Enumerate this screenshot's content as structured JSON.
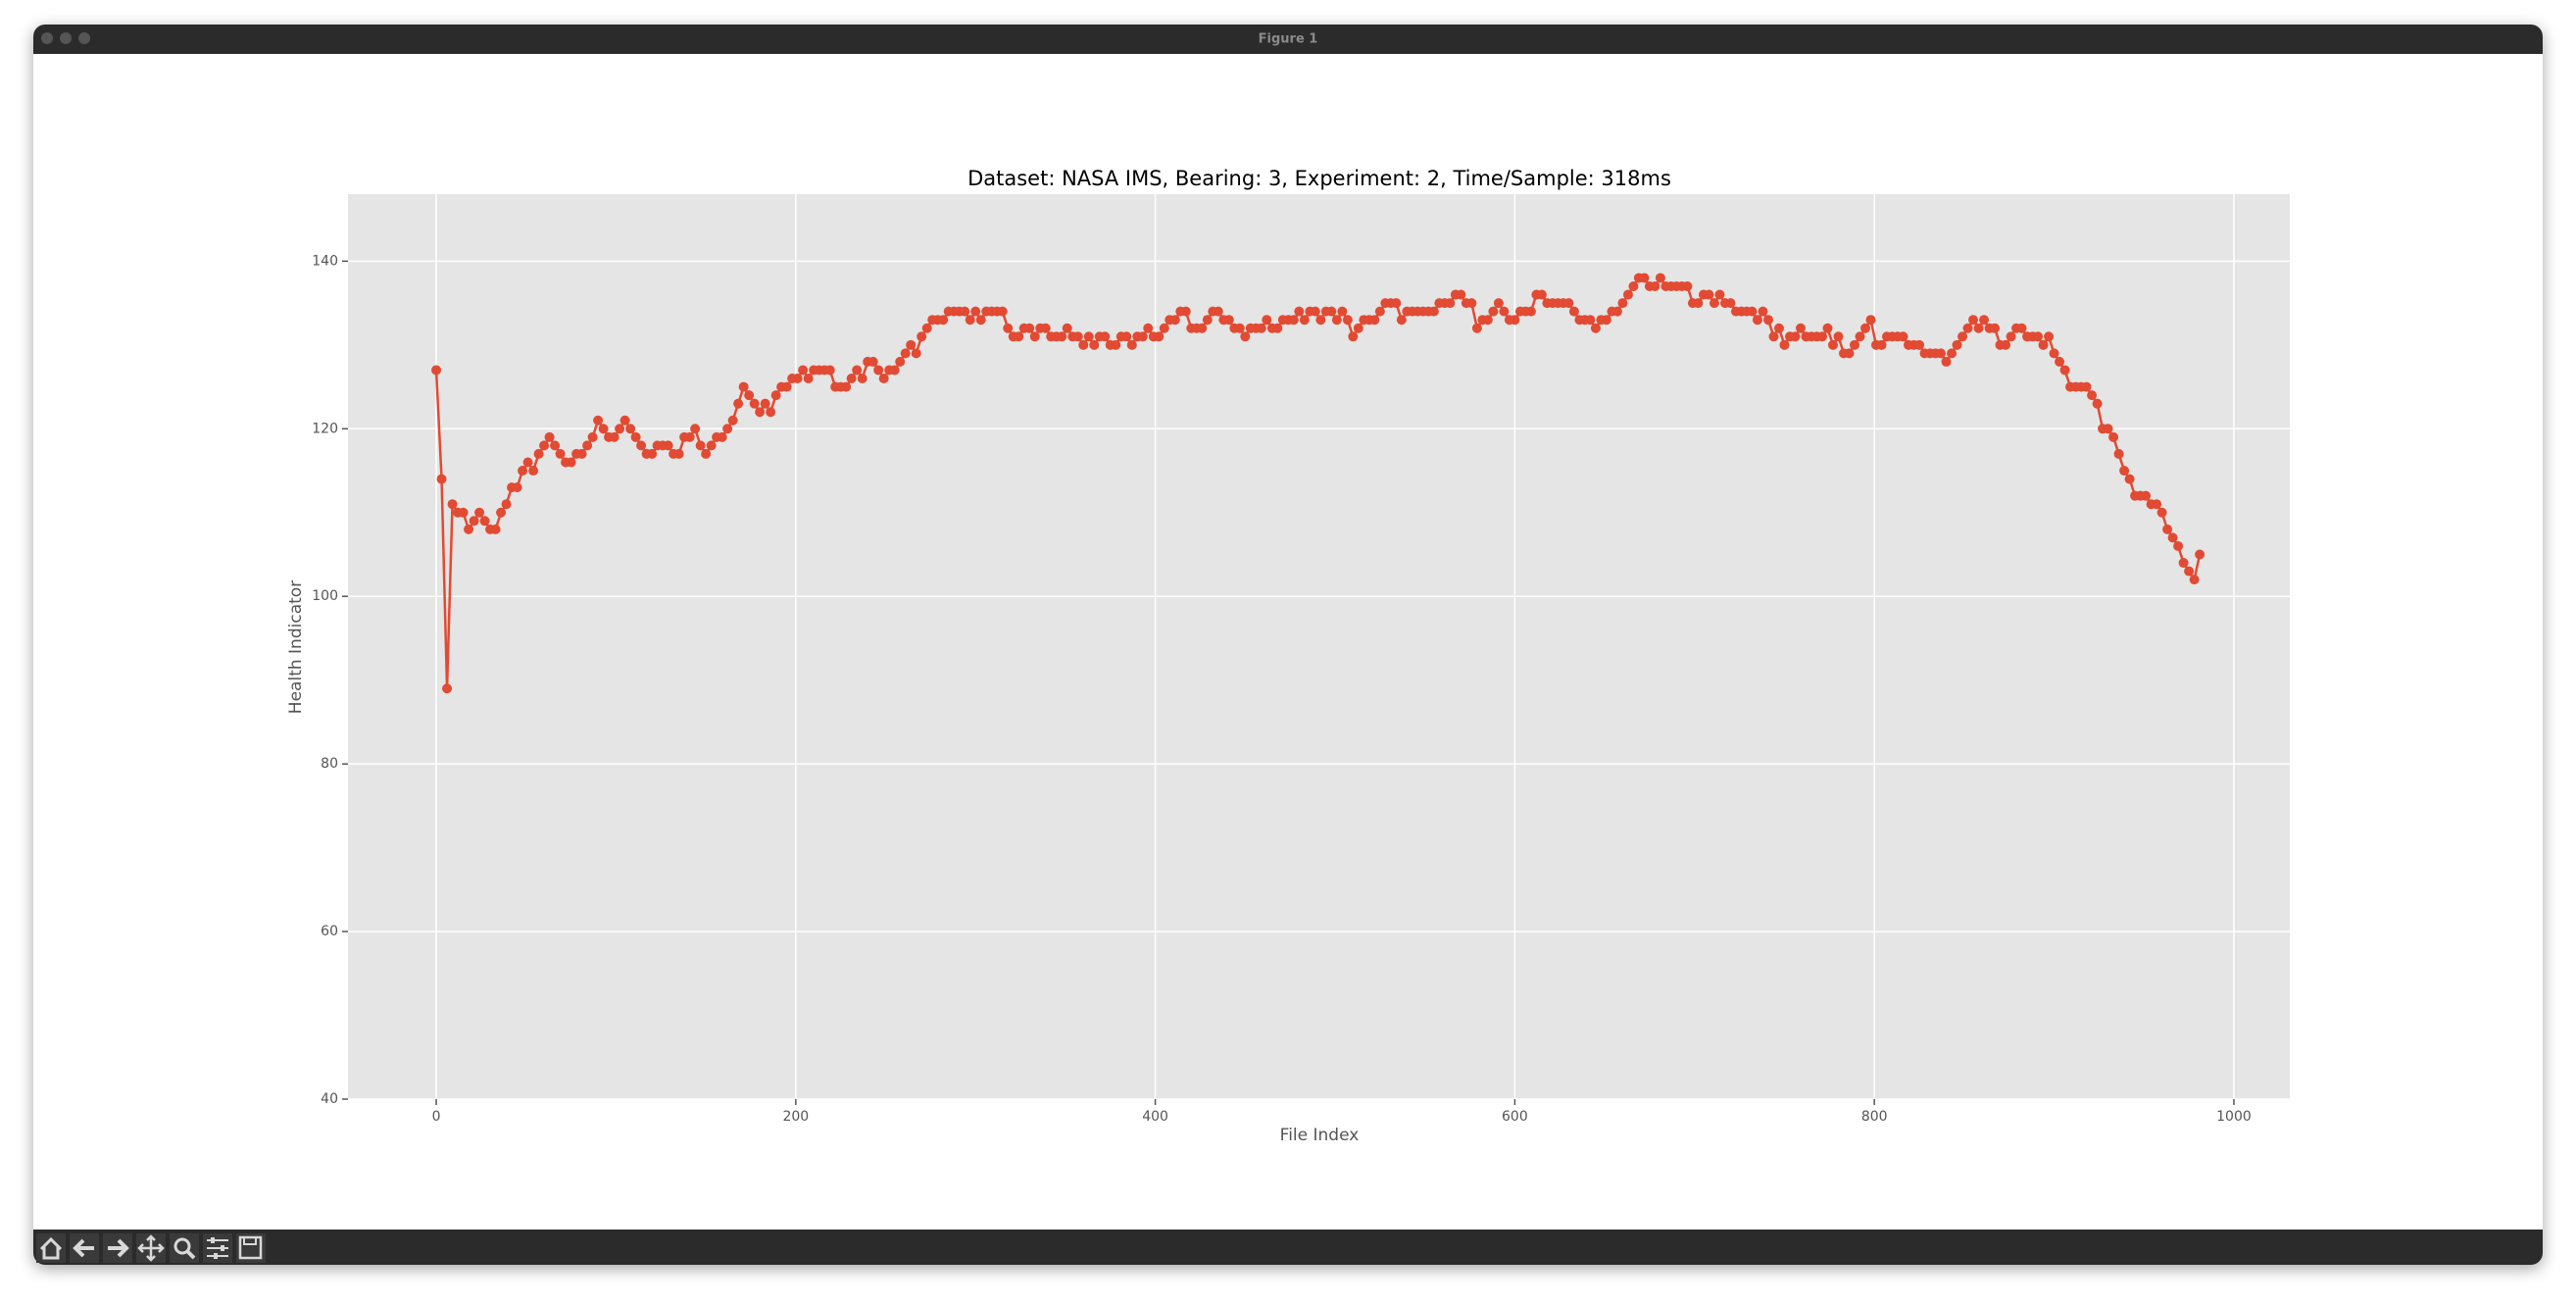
{
  "window": {
    "title": "Figure 1"
  },
  "chart_data": {
    "type": "line",
    "title": "Dataset: NASA IMS, Bearing: 3, Experiment: 2, Time/Sample: 318ms",
    "x_label": "File Index",
    "y_label": "Health Indicator",
    "color": "#E24A33",
    "marker": true,
    "grid": true,
    "xlim": [
      -49.1,
      1031.1
    ],
    "ylim": [
      40,
      148
    ],
    "xticks": [
      0,
      200,
      400,
      600,
      800,
      1000
    ],
    "yticks": [
      40,
      60,
      80,
      100,
      120,
      140
    ],
    "x": [
      0,
      3,
      6,
      9,
      12,
      15,
      18,
      21,
      24,
      27,
      30,
      33,
      36,
      39,
      42,
      45,
      48,
      51,
      54,
      57,
      60,
      63,
      66,
      69,
      72,
      75,
      78,
      81,
      84,
      87,
      90,
      93,
      96,
      99,
      102,
      105,
      108,
      111,
      114,
      117,
      120,
      123,
      126,
      129,
      132,
      135,
      138,
      141,
      144,
      147,
      150,
      153,
      156,
      159,
      162,
      165,
      168,
      171,
      174,
      177,
      180,
      183,
      186,
      189,
      192,
      195,
      198,
      201,
      204,
      207,
      210,
      213,
      216,
      219,
      222,
      225,
      228,
      231,
      234,
      237,
      240,
      243,
      246,
      249,
      252,
      255,
      258,
      261,
      264,
      267,
      270,
      273,
      276,
      279,
      282,
      285,
      288,
      291,
      294,
      297,
      300,
      303,
      306,
      309,
      312,
      315,
      318,
      321,
      324,
      327,
      330,
      333,
      336,
      339,
      342,
      345,
      348,
      351,
      354,
      357,
      360,
      363,
      366,
      369,
      372,
      375,
      378,
      381,
      384,
      387,
      390,
      393,
      396,
      399,
      402,
      405,
      408,
      411,
      414,
      417,
      420,
      423,
      426,
      429,
      432,
      435,
      438,
      441,
      444,
      447,
      450,
      453,
      456,
      459,
      462,
      465,
      468,
      471,
      474,
      477,
      480,
      483,
      486,
      489,
      492,
      495,
      498,
      501,
      504,
      507,
      510,
      513,
      516,
      519,
      522,
      525,
      528,
      531,
      534,
      537,
      540,
      543,
      546,
      549,
      552,
      555,
      558,
      561,
      564,
      567,
      570,
      573,
      576,
      579,
      582,
      585,
      588,
      591,
      594,
      597,
      600,
      603,
      606,
      609,
      612,
      615,
      618,
      621,
      624,
      627,
      630,
      633,
      636,
      639,
      642,
      645,
      648,
      651,
      654,
      657,
      660,
      663,
      666,
      669,
      672,
      675,
      678,
      681,
      684,
      687,
      690,
      693,
      696,
      699,
      702,
      705,
      708,
      711,
      714,
      717,
      720,
      723,
      726,
      729,
      732,
      735,
      738,
      741,
      744,
      747,
      750,
      753,
      756,
      759,
      762,
      765,
      768,
      771,
      774,
      777,
      780,
      783,
      786,
      789,
      792,
      795,
      798,
      801,
      804,
      807,
      810,
      813,
      816,
      819,
      822,
      825,
      828,
      831,
      834,
      837,
      840,
      843,
      846,
      849,
      852,
      855,
      858,
      861,
      864,
      867,
      870,
      873,
      876,
      879,
      882,
      885,
      888,
      891,
      894,
      897,
      900,
      903,
      906,
      909,
      912,
      915,
      918,
      921,
      924,
      927,
      930,
      933,
      936,
      939,
      942,
      945,
      948,
      951,
      954,
      957,
      960,
      963,
      966,
      969,
      972,
      975,
      978,
      981
    ],
    "values": [
      127,
      114,
      89,
      111,
      110,
      110,
      108,
      109,
      110,
      109,
      108,
      108,
      110,
      111,
      113,
      113,
      115,
      116,
      115,
      117,
      118,
      119,
      118,
      117,
      116,
      116,
      117,
      117,
      118,
      119,
      121,
      120,
      119,
      119,
      120,
      121,
      120,
      119,
      118,
      117,
      117,
      118,
      118,
      118,
      117,
      117,
      119,
      119,
      120,
      118,
      117,
      118,
      119,
      119,
      120,
      121,
      123,
      125,
      124,
      123,
      122,
      123,
      122,
      124,
      125,
      125,
      126,
      126,
      127,
      126,
      127,
      127,
      127,
      127,
      125,
      125,
      125,
      126,
      127,
      126,
      128,
      128,
      127,
      126,
      127,
      127,
      128,
      129,
      130,
      129,
      131,
      132,
      133,
      133,
      133,
      134,
      134,
      134,
      134,
      133,
      134,
      133,
      134,
      134,
      134,
      134,
      132,
      131,
      131,
      132,
      132,
      131,
      132,
      132,
      131,
      131,
      131,
      132,
      131,
      131,
      130,
      131,
      130,
      131,
      131,
      130,
      130,
      131,
      131,
      130,
      131,
      131,
      132,
      131,
      131,
      132,
      133,
      133,
      134,
      134,
      132,
      132,
      132,
      133,
      134,
      134,
      133,
      133,
      132,
      132,
      131,
      132,
      132,
      132,
      133,
      132,
      132,
      133,
      133,
      133,
      134,
      133,
      134,
      134,
      133,
      134,
      134,
      133,
      134,
      133,
      131,
      132,
      133,
      133,
      133,
      134,
      135,
      135,
      135,
      133,
      134,
      134,
      134,
      134,
      134,
      134,
      135,
      135,
      135,
      136,
      136,
      135,
      135,
      132,
      133,
      133,
      134,
      135,
      134,
      133,
      133,
      134,
      134,
      134,
      136,
      136,
      135,
      135,
      135,
      135,
      135,
      134,
      133,
      133,
      133,
      132,
      133,
      133,
      134,
      134,
      135,
      136,
      137,
      138,
      138,
      137,
      137,
      138,
      137,
      137,
      137,
      137,
      137,
      135,
      135,
      136,
      136,
      135,
      136,
      135,
      135,
      134,
      134,
      134,
      134,
      133,
      134,
      133,
      131,
      132,
      130,
      131,
      131,
      132,
      131,
      131,
      131,
      131,
      132,
      130,
      131,
      129,
      129,
      130,
      131,
      132,
      133,
      130,
      130,
      131,
      131,
      131,
      131,
      130,
      130,
      130,
      129,
      129,
      129,
      129,
      128,
      129,
      130,
      131,
      132,
      133,
      132,
      133,
      132,
      132,
      130,
      130,
      131,
      132,
      132,
      131,
      131,
      131,
      130,
      131,
      129,
      128,
      127,
      125,
      125,
      125,
      125,
      124,
      123,
      120,
      120,
      119,
      117,
      115,
      114,
      112,
      112,
      112,
      111,
      111,
      110,
      108,
      107,
      106,
      104,
      103,
      102,
      105
    ]
  }
}
